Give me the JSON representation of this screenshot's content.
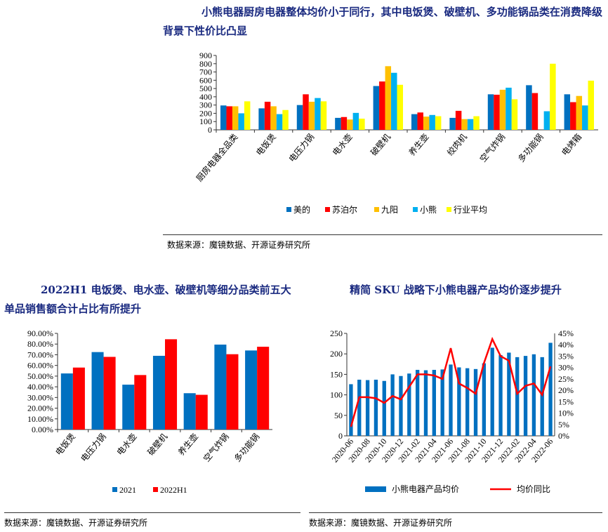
{
  "section1": {
    "title": "小熊电器厨房电器整体均价小于同行，其中电饭煲、破壁机、多功能锅品类在消费降级背景下性价比凸显",
    "source": "数据来源：魔镜数据、开源证券研究所"
  },
  "section2": {
    "title": "2022H1 电饭煲、电水壶、破壁机等细分品类前五大单品销售额合计占比有所提升",
    "source": "数据来源：魔镜数据、开源证券研究所"
  },
  "section3": {
    "title": "精简 SKU 战略下小熊电器产品均价逐步提升",
    "source": "数据来源：魔镜数据、开源证券研究所"
  },
  "chart_data": [
    {
      "type": "bar",
      "categories": [
        "厨房电器全品类",
        "电饭煲",
        "电压力锅",
        "电水壶",
        "破壁机",
        "养生壶",
        "绞肉机",
        "空气炸锅",
        "多功能锅",
        "电烤箱"
      ],
      "ylim": [
        0,
        900
      ],
      "yticks": [
        0,
        100,
        200,
        300,
        400,
        500,
        600,
        700,
        800,
        900
      ],
      "legend": "bottom",
      "series": [
        {
          "name": "美的",
          "color": "#0070c0",
          "values": [
            295,
            260,
            300,
            145,
            530,
            190,
            145,
            430,
            540,
            430
          ]
        },
        {
          "name": "苏泊尔",
          "color": "#ff0000",
          "values": [
            285,
            340,
            430,
            155,
            585,
            210,
            230,
            425,
            445,
            335
          ]
        },
        {
          "name": "九阳",
          "color": "#ffc000",
          "values": [
            285,
            285,
            340,
            125,
            770,
            160,
            130,
            485,
            null,
            410
          ]
        },
        {
          "name": "小熊",
          "color": "#00b0f0",
          "values": [
            200,
            190,
            385,
            205,
            690,
            180,
            130,
            510,
            225,
            295
          ]
        },
        {
          "name": "行业平均",
          "color": "#ffff00",
          "values": [
            345,
            240,
            345,
            135,
            545,
            165,
            165,
            370,
            800,
            595
          ]
        }
      ]
    },
    {
      "type": "bar",
      "categories": [
        "电饭煲",
        "电压力锅",
        "电水壶",
        "破壁机",
        "养生壶",
        "空气炸锅",
        "多功能锅"
      ],
      "ylim": [
        0,
        90
      ],
      "yticks": [
        "0.00%",
        "10.00%",
        "20.00%",
        "30.00%",
        "40.00%",
        "50.00%",
        "60.00%",
        "70.00%",
        "80.00%",
        "90.00%"
      ],
      "legend": "bottom",
      "series": [
        {
          "name": "2021",
          "color": "#0070c0",
          "values": [
            52.5,
            72.5,
            42,
            69,
            34,
            79.5,
            74
          ]
        },
        {
          "name": "2022H1",
          "color": "#ff0000",
          "values": [
            58,
            68,
            51,
            84.5,
            32.5,
            70.5,
            77.5
          ]
        }
      ]
    },
    {
      "type": "bar+line",
      "x": [
        "2020-06",
        "2020-07",
        "2020-08",
        "2020-09",
        "2020-10",
        "2020-11",
        "2020-12",
        "2021-01",
        "2021-02",
        "2021-03",
        "2021-04",
        "2021-05",
        "2021-06",
        "2021-07",
        "2021-08",
        "2021-09",
        "2021-10",
        "2021-11",
        "2021-12",
        "2022-01",
        "2022-02",
        "2022-03",
        "2022-04",
        "2022-05",
        "2022-06"
      ],
      "xticks": [
        "2020-06",
        "2020-08",
        "2020-10",
        "2020-12",
        "2021-02",
        "2021-04",
        "2021-06",
        "2021-08",
        "2021-10",
        "2021-12",
        "2022-02",
        "2022-04",
        "2022-06"
      ],
      "ylim": [
        0,
        250
      ],
      "yticks": [
        "0",
        "50",
        "100",
        "150",
        "200",
        "250"
      ],
      "y2lim": [
        0,
        45
      ],
      "y2ticks": [
        "0%",
        "5%",
        "10%",
        "15%",
        "20%",
        "25%",
        "30%",
        "35%",
        "40%",
        "45%"
      ],
      "legend": "bottom",
      "series": [
        {
          "name": "小熊电器产品均价",
          "color": "#0070c0",
          "axis": "left",
          "values": [
            126,
            137,
            136,
            137,
            134,
            150,
            146,
            152,
            161,
            160,
            161,
            162,
            174,
            167,
            165,
            163,
            177,
            215,
            197,
            203,
            192,
            195,
            199,
            192,
            227
          ]
        },
        {
          "name": "均价同比",
          "color": "#ff0000",
          "axis": "right",
          "values": [
            4,
            17,
            17,
            16.5,
            14.5,
            17.5,
            16,
            21.5,
            27,
            27,
            26.5,
            25,
            38.5,
            23,
            21,
            18.5,
            32,
            42.5,
            35,
            33,
            18.5,
            22,
            23,
            18,
            30.5
          ]
        }
      ]
    }
  ]
}
